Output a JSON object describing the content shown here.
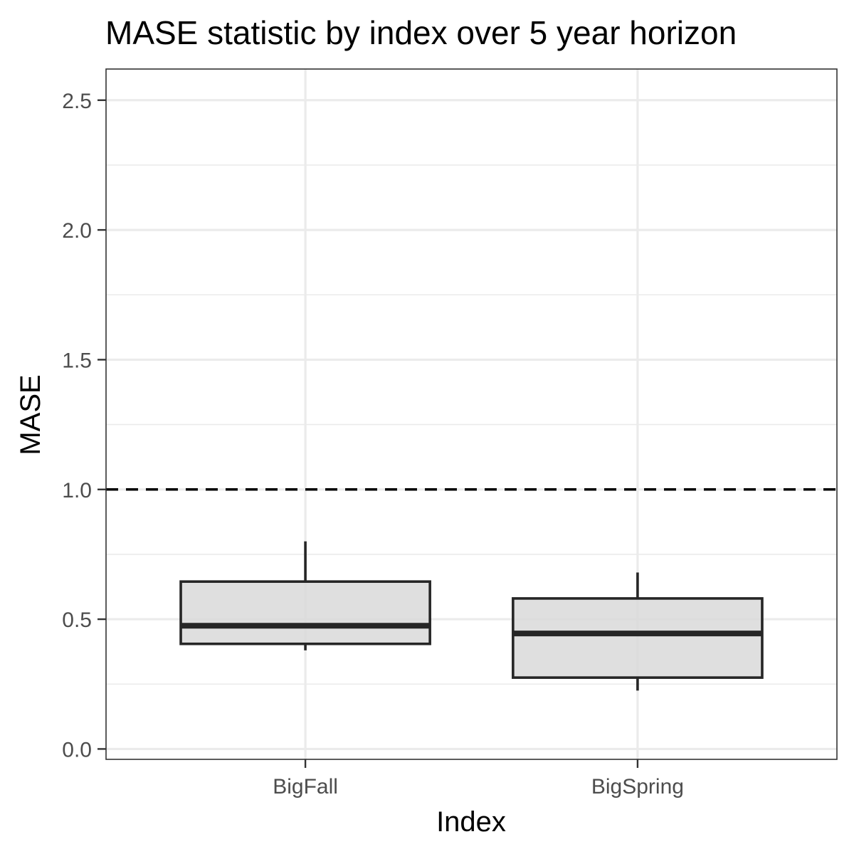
{
  "chart_data": {
    "type": "boxplot",
    "title": "MASE statistic by index over 5 year horizon",
    "xlabel": "Index",
    "ylabel": "MASE",
    "categories": [
      "BigFall",
      "BigSpring"
    ],
    "boxes": [
      {
        "category": "BigFall",
        "min": 0.38,
        "q1": 0.405,
        "median": 0.475,
        "q3": 0.645,
        "max": 0.8
      },
      {
        "category": "BigSpring",
        "min": 0.225,
        "q1": 0.275,
        "median": 0.445,
        "q3": 0.58,
        "max": 0.68
      }
    ],
    "ylim": [
      -0.04,
      2.62
    ],
    "yticks": [
      0.0,
      0.5,
      1.0,
      1.5,
      2.0,
      2.5
    ],
    "ytick_labels": [
      "0.0",
      "0.5",
      "1.0",
      "1.5",
      "2.0",
      "2.5"
    ],
    "reference_line": {
      "y": 1.0,
      "style": "dashed"
    },
    "grid": true,
    "colors": {
      "box_fill": "#d9d9d9",
      "box_stroke": "#262626",
      "grid": "#ebebeb",
      "reference_line": "#000000"
    }
  }
}
